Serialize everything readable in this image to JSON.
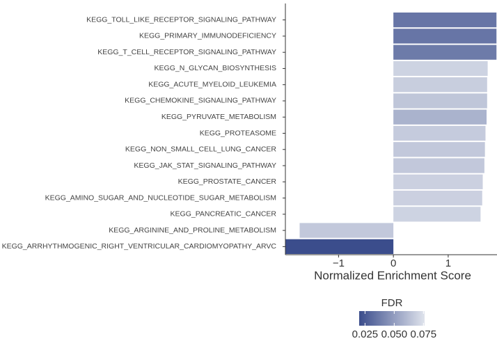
{
  "chart_data": {
    "type": "bar",
    "orientation": "horizontal",
    "categories": [
      "KEGG_TOLL_LIKE_RECEPTOR_SIGNALING_PATHWAY",
      "KEGG_PRIMARY_IMMUNODEFICIENCY",
      "KEGG_T_CELL_RECEPTOR_SIGNALING_PATHWAY",
      "KEGG_N_GLYCAN_BIOSYNTHESIS",
      "KEGG_ACUTE_MYELOID_LEUKEMIA",
      "KEGG_CHEMOKINE_SIGNALING_PATHWAY",
      "KEGG_PYRUVATE_METABOLISM",
      "KEGG_PROTEASOME",
      "KEGG_NON_SMALL_CELL_LUNG_CANCER",
      "KEGG_JAK_STAT_SIGNALING_PATHWAY",
      "KEGG_PROSTATE_CANCER",
      "KEGG_AMINO_SUGAR_AND_NUCLEOTIDE_SUGAR_METABOLISM",
      "KEGG_PANCREATIC_CANCER",
      "KEGG_ARGININE_AND_PROLINE_METABOLISM",
      "KEGG_ARRHYTHMOGENIC_RIGHT_VENTRICULAR_CARDIOMYOPATHY_ARVC"
    ],
    "values": [
      1.88,
      1.88,
      1.88,
      1.72,
      1.71,
      1.71,
      1.7,
      1.68,
      1.67,
      1.66,
      1.63,
      1.62,
      1.59,
      -1.71,
      -1.97
    ],
    "fdr": [
      0.035,
      0.035,
      0.037,
      0.07,
      0.068,
      0.065,
      0.058,
      0.067,
      0.066,
      0.066,
      0.069,
      0.069,
      0.07,
      0.066,
      0.02
    ],
    "xlabel": "Normalized Enrichment Score",
    "xlim": [
      -1.97,
      1.89
    ],
    "xticks": [
      {
        "value": -1,
        "label": "−1"
      },
      0,
      1
    ],
    "legend_title": "FDR",
    "color_scale": [
      "#3b4d8c",
      "#dfe3ec"
    ],
    "color_lim": [
      0.02,
      0.076
    ],
    "color_ticks": [
      0.025,
      {
        "value": 0.05,
        "label": "0.050"
      },
      0.075
    ]
  }
}
